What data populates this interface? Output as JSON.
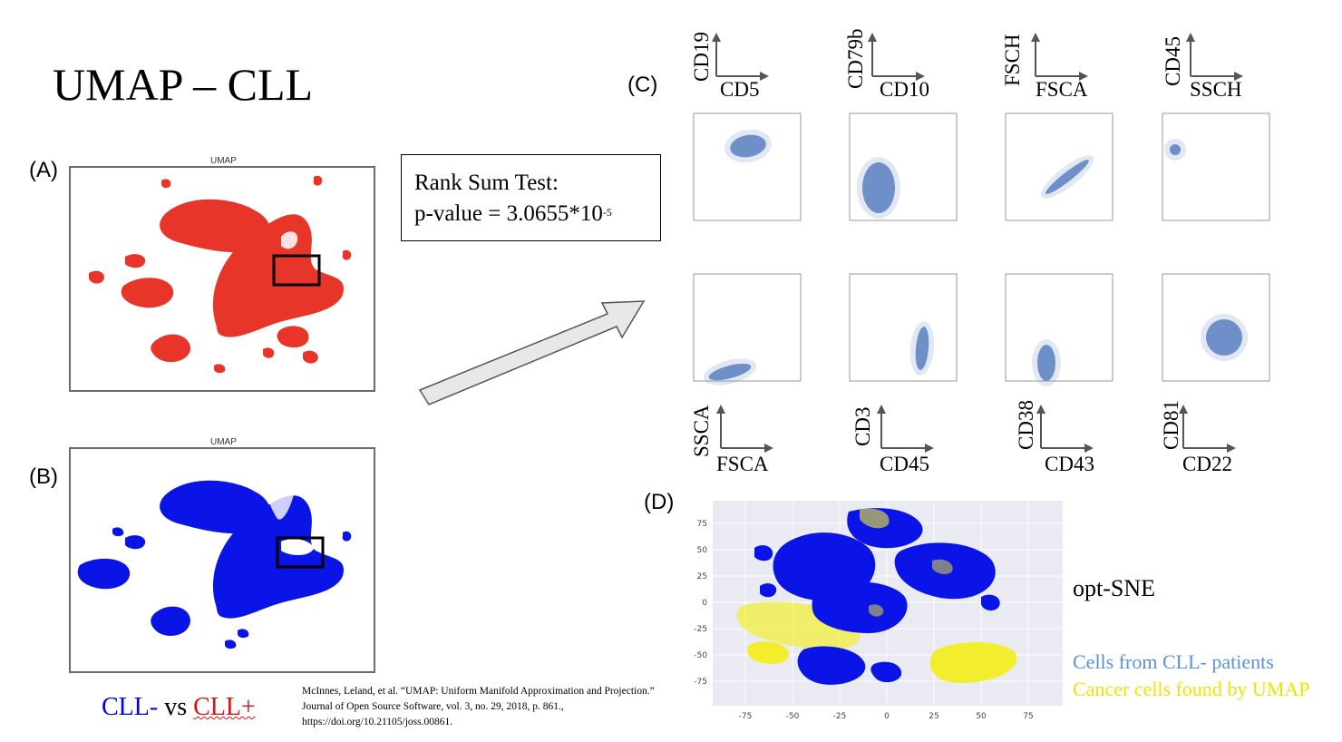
{
  "slide": {
    "title": "UMAP – CLL",
    "labels": {
      "a": "(A)",
      "b": "(B)",
      "c": "(C)",
      "d": "(D)"
    },
    "umap_a_title": "UMAP",
    "umap_b_title": "UMAP",
    "rank_test": {
      "line1": "Rank Sum Test:",
      "line2_prefix": "p-value = 3.0655*10",
      "exponent": "-5"
    },
    "scatter_axes_top": [
      {
        "y": "CD19",
        "x": "CD5"
      },
      {
        "y": "CD79b",
        "x": "CD10"
      },
      {
        "y": "FSCH",
        "x": "FSCA"
      },
      {
        "y": "CD45",
        "x": "SSCH"
      }
    ],
    "scatter_axes_bottom": [
      {
        "y": "SSCA",
        "x": "FSCA"
      },
      {
        "y": "CD3",
        "x": "CD45"
      },
      {
        "y": "CD38",
        "x": "CD43"
      },
      {
        "y": "CD81",
        "x": "CD22"
      }
    ],
    "legend": {
      "neg": "CLL-",
      "vs": " vs ",
      "pos": "CLL+"
    },
    "citation": "McInnes, Leland, et al. “UMAP: Uniform Manifold Approximation and Projection.” Journal of Open Source Software, vol. 3, no. 29, 2018, p. 861., https://doi.org/10.21105/joss.00861.",
    "optsne": {
      "label": "opt-SNE",
      "legend_blue": "Cells from CLL- patients",
      "legend_yellow": "Cancer cells found by UMAP",
      "x_ticks": [
        "-75",
        "-50",
        "-25",
        "0",
        "25",
        "50",
        "75"
      ],
      "y_ticks": [
        "75",
        "50",
        "25",
        "0",
        "-25",
        "-50",
        "-75"
      ]
    },
    "colors": {
      "umap_a": "#e8352a",
      "umap_b": "#0a14e6",
      "scatter": "#5a7fc0",
      "yellow": "#f2ee2e",
      "legend_blue": "#5b8fe0"
    }
  }
}
